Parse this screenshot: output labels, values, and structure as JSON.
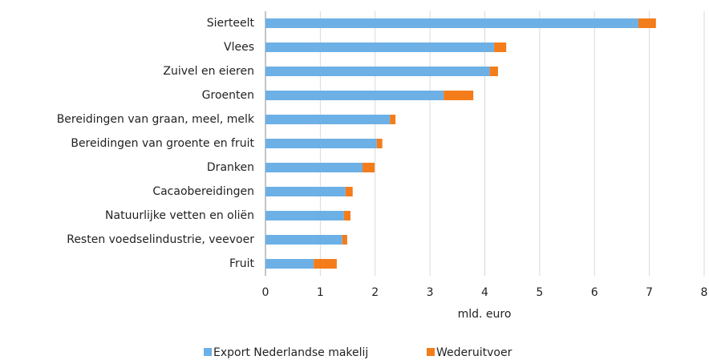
{
  "chart_data": {
    "type": "bar",
    "orientation": "horizontal",
    "stacked": true,
    "categories": [
      "Sierteelt",
      "Vlees",
      "Zuivel en eieren",
      "Groenten",
      "Bereidingen van graan, meel, melk",
      "Bereidingen van groente en fruit",
      "Dranken",
      "Cacaobereidingen",
      "Natuurlijke vetten en oliën",
      "Resten voedselindustrie, veevoer",
      "Fruit"
    ],
    "series": [
      {
        "name": "Export Nederlandse makelij",
        "color": "#6cb0e6",
        "values": [
          6.8,
          4.17,
          4.09,
          3.25,
          2.27,
          2.03,
          1.77,
          1.46,
          1.43,
          1.4,
          0.88
        ]
      },
      {
        "name": "Wederuitvoer",
        "color": "#f47c1a",
        "values": [
          0.32,
          0.22,
          0.15,
          0.54,
          0.1,
          0.1,
          0.22,
          0.13,
          0.12,
          0.09,
          0.42
        ]
      }
    ],
    "xlabel": "mld. euro",
    "xlim": [
      0,
      8
    ],
    "xticks": [
      0,
      1,
      2,
      3,
      4,
      5,
      6,
      7,
      8
    ],
    "grid": true,
    "legend": "bottom"
  }
}
